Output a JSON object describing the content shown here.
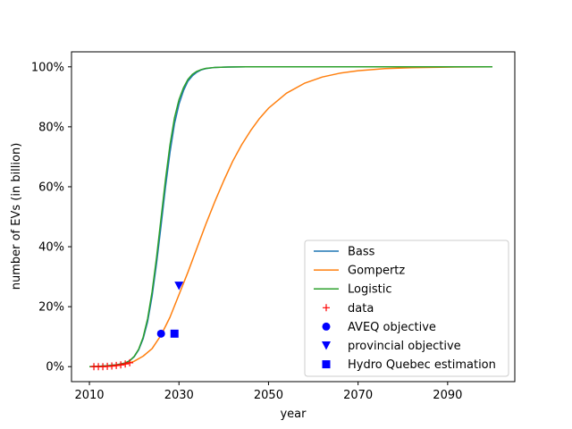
{
  "chart_data": {
    "type": "line",
    "xlabel": "year",
    "ylabel": "number of EVs (in billion)",
    "xlim": [
      2006,
      2105
    ],
    "ylim": [
      -0.05,
      1.05
    ],
    "x_ticks": [
      2010,
      2030,
      2050,
      2070,
      2090
    ],
    "y_ticks": [
      0,
      0.2,
      0.4,
      0.6,
      0.8,
      1.0
    ],
    "y_tick_labels": [
      "0%",
      "20%",
      "40%",
      "60%",
      "80%",
      "100%"
    ],
    "grid": false,
    "legend_position": "lower right",
    "series": [
      {
        "name": "Bass",
        "kind": "line",
        "color": "#1f77b4",
        "x": [
          2010,
          2012,
          2014,
          2016,
          2018,
          2019,
          2020,
          2021,
          2022,
          2023,
          2024,
          2025,
          2026,
          2027,
          2028,
          2029,
          2030,
          2031,
          2032,
          2033,
          2034,
          2035,
          2036,
          2038,
          2040,
          2045,
          2050,
          2060,
          2070,
          2080,
          2090,
          2100
        ],
        "y": [
          0.0,
          0.001,
          0.003,
          0.006,
          0.012,
          0.02,
          0.033,
          0.056,
          0.093,
          0.15,
          0.235,
          0.345,
          0.47,
          0.6,
          0.715,
          0.81,
          0.875,
          0.92,
          0.952,
          0.97,
          0.982,
          0.99,
          0.994,
          0.998,
          0.999,
          1.0,
          1.0,
          1.0,
          1.0,
          1.0,
          1.0,
          1.0
        ]
      },
      {
        "name": "Gompertz",
        "kind": "line",
        "color": "#ff7f0e",
        "x": [
          2010,
          2014,
          2016,
          2018,
          2020,
          2022,
          2024,
          2026,
          2028,
          2030,
          2032,
          2034,
          2036,
          2038,
          2040,
          2042,
          2044,
          2046,
          2048,
          2050,
          2054,
          2058,
          2062,
          2066,
          2070,
          2076,
          2082,
          2090,
          2100
        ],
        "y": [
          0.0,
          0.001,
          0.003,
          0.008,
          0.018,
          0.035,
          0.06,
          0.105,
          0.165,
          0.24,
          0.315,
          0.395,
          0.475,
          0.55,
          0.62,
          0.685,
          0.74,
          0.787,
          0.828,
          0.862,
          0.912,
          0.945,
          0.966,
          0.979,
          0.987,
          0.994,
          0.997,
          0.999,
          1.0
        ]
      },
      {
        "name": "Logistic",
        "kind": "line",
        "color": "#2ca02c",
        "x": [
          2010,
          2012,
          2014,
          2016,
          2018,
          2019,
          2020,
          2021,
          2022,
          2023,
          2024,
          2025,
          2026,
          2027,
          2028,
          2029,
          2030,
          2031,
          2032,
          2033,
          2034,
          2035,
          2036,
          2038,
          2040,
          2045,
          2050,
          2060,
          2070,
          2080,
          2090,
          2100
        ],
        "y": [
          0.0,
          0.001,
          0.003,
          0.006,
          0.012,
          0.02,
          0.034,
          0.058,
          0.098,
          0.16,
          0.25,
          0.365,
          0.495,
          0.625,
          0.74,
          0.83,
          0.89,
          0.93,
          0.958,
          0.975,
          0.985,
          0.991,
          0.995,
          0.998,
          0.999,
          1.0,
          1.0,
          1.0,
          1.0,
          1.0,
          1.0,
          1.0
        ]
      },
      {
        "name": "data",
        "kind": "marker",
        "marker": "plus",
        "color": "#ff0000",
        "x": [
          2011,
          2012,
          2013,
          2014,
          2015,
          2016,
          2017,
          2018,
          2019
        ],
        "y": [
          0.0,
          0.0,
          0.0,
          0.001,
          0.002,
          0.004,
          0.006,
          0.009,
          0.013
        ]
      },
      {
        "name": "AVEQ objective",
        "kind": "marker",
        "marker": "circle",
        "color": "#0000ff",
        "x": [
          2026
        ],
        "y": [
          0.11
        ]
      },
      {
        "name": "provincial objective",
        "kind": "marker",
        "marker": "triangle-down",
        "color": "#0000ff",
        "x": [
          2030
        ],
        "y": [
          0.27
        ]
      },
      {
        "name": "Hydro Quebec estimation",
        "kind": "marker",
        "marker": "square",
        "color": "#0000ff",
        "x": [
          2029
        ],
        "y": [
          0.11
        ]
      }
    ]
  }
}
